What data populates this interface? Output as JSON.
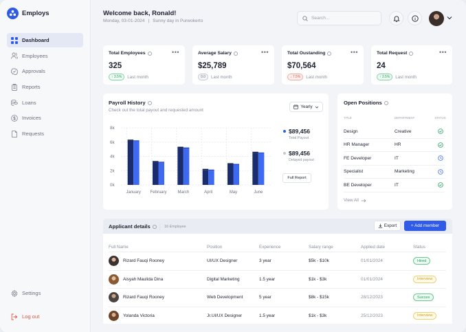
{
  "brand": {
    "name": "Employs"
  },
  "sidebar": {
    "items": [
      {
        "label": "Dashboard",
        "icon": "grid-icon",
        "active": true
      },
      {
        "label": "Employees",
        "icon": "users-icon",
        "active": false
      },
      {
        "label": "Approvals",
        "icon": "badge-check-icon",
        "active": false
      },
      {
        "label": "Reports",
        "icon": "clipboard-icon",
        "active": false
      },
      {
        "label": "Loans",
        "icon": "coins-icon",
        "active": false
      },
      {
        "label": "Invoices",
        "icon": "dollar-circle-icon",
        "active": false
      },
      {
        "label": "Requests",
        "icon": "document-icon",
        "active": false
      }
    ],
    "settings_label": "Settings",
    "logout_label": "Log out"
  },
  "header": {
    "welcome": "Welcome back, Ronald!",
    "date": "Monday, 03-01-2024",
    "separator": "|",
    "weather": "Sunny day in Purwokerto",
    "search_placeholder": "Search..."
  },
  "stats": [
    {
      "title": "Total Employees",
      "value": "325",
      "change": "↑ 3.5%",
      "trend": "up",
      "period": "Last month"
    },
    {
      "title": "Average Salary",
      "value": "$25,789",
      "change": "0.0",
      "trend": "flat",
      "period": "Last month"
    },
    {
      "title": "Total Oustanding",
      "value": "$70,564",
      "change": "↓ 7.5%",
      "trend": "down",
      "period": "Last month"
    },
    {
      "title": "Total Request",
      "value": "24",
      "change": "↑ 3.5%",
      "trend": "up",
      "period": "Last month"
    }
  ],
  "payroll": {
    "title": "Payroll History",
    "subtitle": "Check out the total payout and requested amount",
    "period_label": "Yearly",
    "total_payout": "$89,456",
    "total_payout_label": "Total Payout",
    "delayed_payout": "$89,456",
    "delayed_payout_label": "Delayed payout",
    "full_report_label": "Full Report"
  },
  "chart_data": {
    "type": "bar",
    "categories": [
      "January",
      "February",
      "March",
      "April",
      "May",
      "June"
    ],
    "series": [
      {
        "name": "Total Payout",
        "color": "#1b2c6e",
        "values": [
          6.2,
          3.2,
          5.2,
          2.1,
          2.9,
          4.5
        ]
      },
      {
        "name": "Delayed payout",
        "color": "#3d6af0",
        "values": [
          6.1,
          3.1,
          5.1,
          2.0,
          2.8,
          4.4
        ]
      }
    ],
    "y_ticks": [
      "0k",
      "2k",
      "4k",
      "6k",
      "8k"
    ],
    "ylim": [
      0,
      8
    ],
    "grid": true
  },
  "positions": {
    "title": "Open Positions",
    "headers": [
      "Title",
      "Department",
      "Status"
    ],
    "rows": [
      {
        "title": "Design",
        "department": "Creative",
        "status": "done"
      },
      {
        "title": "HR Manager",
        "department": "HR",
        "status": "done"
      },
      {
        "title": "FE Developer",
        "department": "IT",
        "status": "pending"
      },
      {
        "title": "Specialist",
        "department": "Marketing",
        "status": "pending"
      },
      {
        "title": "BE Developer",
        "department": "IT",
        "status": "done"
      }
    ],
    "view_all": "View All"
  },
  "applicants": {
    "title": "Applicant details",
    "count": "16 Employee",
    "export_label": "Export",
    "add_label": "+ Add member",
    "columns": [
      "Full Name",
      "Position",
      "Experience",
      "Salary range",
      "Applied date",
      "Status"
    ],
    "rows": [
      {
        "name": "Rizard Fauqi Rooney",
        "position": "UI/UX Designer",
        "experience": "3 year",
        "salary": "$5k - $10k",
        "date": "01/01/2024",
        "status": "Hired",
        "status_type": "hired"
      },
      {
        "name": "Aisyah Maulida Dina",
        "position": "Digital Marketing",
        "experience": "1.5 year",
        "salary": "$1k - $3k",
        "date": "01/01/2024",
        "status": "Interview",
        "status_type": "interview"
      },
      {
        "name": "Rizard Fauqi Rooney",
        "position": "Web Development",
        "experience": "5 year",
        "salary": "$8k - $15k",
        "date": "28/12/2023",
        "status": "Succes",
        "status_type": "succes"
      },
      {
        "name": "Yolanda Victoria",
        "position": "Jr.UI/UX Designer",
        "experience": "1.5 year",
        "salary": "$1k - $3k",
        "date": "25/12/2023",
        "status": "Interview",
        "status_type": "interview"
      }
    ]
  }
}
